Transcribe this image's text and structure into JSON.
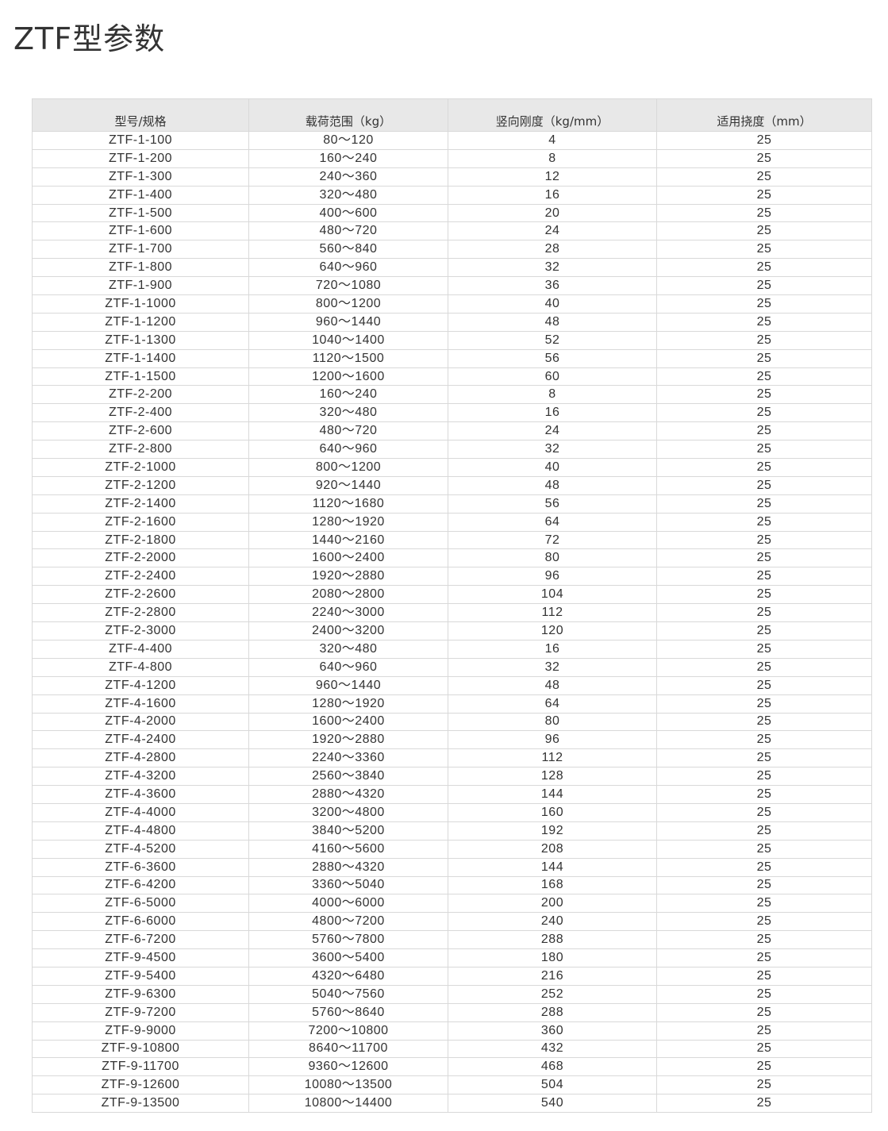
{
  "title": "ZTF型参数",
  "table": {
    "headers": [
      "型号/规格",
      "载荷范围（kg）",
      "竖向刚度（kg/mm）",
      "适用挠度（mm）"
    ],
    "rows": [
      [
        "ZTF-1-100",
        "80～120",
        "4",
        "25"
      ],
      [
        "ZTF-1-200",
        "160～240",
        "8",
        "25"
      ],
      [
        "ZTF-1-300",
        "240～360",
        "12",
        "25"
      ],
      [
        "ZTF-1-400",
        "320～480",
        "16",
        "25"
      ],
      [
        "ZTF-1-500",
        "400～600",
        "20",
        "25"
      ],
      [
        "ZTF-1-600",
        "480～720",
        "24",
        "25"
      ],
      [
        "ZTF-1-700",
        "560～840",
        "28",
        "25"
      ],
      [
        "ZTF-1-800",
        "640～960",
        "32",
        "25"
      ],
      [
        "ZTF-1-900",
        "720～1080",
        "36",
        "25"
      ],
      [
        "ZTF-1-1000",
        "800～1200",
        "40",
        "25"
      ],
      [
        "ZTF-1-1200",
        "960～1440",
        "48",
        "25"
      ],
      [
        "ZTF-1-1300",
        "1040～1400",
        "52",
        "25"
      ],
      [
        "ZTF-1-1400",
        "1120～1500",
        "56",
        "25"
      ],
      [
        "ZTF-1-1500",
        "1200～1600",
        "60",
        "25"
      ],
      [
        "ZTF-2-200",
        "160～240",
        "8",
        "25"
      ],
      [
        "ZTF-2-400",
        "320～480",
        "16",
        "25"
      ],
      [
        "ZTF-2-600",
        "480～720",
        "24",
        "25"
      ],
      [
        "ZTF-2-800",
        "640～960",
        "32",
        "25"
      ],
      [
        "ZTF-2-1000",
        "800～1200",
        "40",
        "25"
      ],
      [
        "ZTF-2-1200",
        "920～1440",
        "48",
        "25"
      ],
      [
        "ZTF-2-1400",
        "1120～1680",
        "56",
        "25"
      ],
      [
        "ZTF-2-1600",
        "1280～1920",
        "64",
        "25"
      ],
      [
        "ZTF-2-1800",
        "1440～2160",
        "72",
        "25"
      ],
      [
        "ZTF-2-2000",
        "1600～2400",
        "80",
        "25"
      ],
      [
        "ZTF-2-2400",
        "1920～2880",
        "96",
        "25"
      ],
      [
        "ZTF-2-2600",
        "2080～2800",
        "104",
        "25"
      ],
      [
        "ZTF-2-2800",
        "2240～3000",
        "112",
        "25"
      ],
      [
        "ZTF-2-3000",
        "2400～3200",
        "120",
        "25"
      ],
      [
        "ZTF-4-400",
        "320～480",
        "16",
        "25"
      ],
      [
        "ZTF-4-800",
        "640～960",
        "32",
        "25"
      ],
      [
        "ZTF-4-1200",
        "960～1440",
        "48",
        "25"
      ],
      [
        "ZTF-4-1600",
        "1280～1920",
        "64",
        "25"
      ],
      [
        "ZTF-4-2000",
        "1600～2400",
        "80",
        "25"
      ],
      [
        "ZTF-4-2400",
        "1920～2880",
        "96",
        "25"
      ],
      [
        "ZTF-4-2800",
        "2240～3360",
        "112",
        "25"
      ],
      [
        "ZTF-4-3200",
        "2560～3840",
        "128",
        "25"
      ],
      [
        "ZTF-4-3600",
        "2880～4320",
        "144",
        "25"
      ],
      [
        "ZTF-4-4000",
        "3200～4800",
        "160",
        "25"
      ],
      [
        "ZTF-4-4800",
        "3840～5200",
        "192",
        "25"
      ],
      [
        "ZTF-4-5200",
        "4160～5600",
        "208",
        "25"
      ],
      [
        "ZTF-6-3600",
        "2880～4320",
        "144",
        "25"
      ],
      [
        "ZTF-6-4200",
        "3360～5040",
        "168",
        "25"
      ],
      [
        "ZTF-6-5000",
        "4000～6000",
        "200",
        "25"
      ],
      [
        "ZTF-6-6000",
        "4800～7200",
        "240",
        "25"
      ],
      [
        "ZTF-6-7200",
        "5760～7800",
        "288",
        "25"
      ],
      [
        "ZTF-9-4500",
        "3600～5400",
        "180",
        "25"
      ],
      [
        "ZTF-9-5400",
        "4320～6480",
        "216",
        "25"
      ],
      [
        "ZTF-9-6300",
        "5040～7560",
        "252",
        "25"
      ],
      [
        "ZTF-9-7200",
        "5760～8640",
        "288",
        "25"
      ],
      [
        "ZTF-9-9000",
        "7200～10800",
        "360",
        "25"
      ],
      [
        "ZTF-9-10800",
        "8640～11700",
        "432",
        "25"
      ],
      [
        "ZTF-9-11700",
        "9360～12600",
        "468",
        "25"
      ],
      [
        "ZTF-9-12600",
        "10080～13500",
        "504",
        "25"
      ],
      [
        "ZTF-9-13500",
        "10800～14400",
        "540",
        "25"
      ]
    ]
  }
}
